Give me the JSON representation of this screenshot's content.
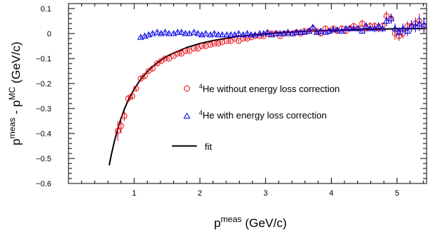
{
  "chart_data": {
    "type": "scatter",
    "xlabel": {
      "base": "p",
      "sup": "meas",
      "rest": " (GeV/c)"
    },
    "ylabel": {
      "base1": "p",
      "sup1": "meas",
      "mid": " - p",
      "sup2": "MC",
      "rest": " (GeV/c)"
    },
    "xlim": [
      0.0,
      5.45
    ],
    "ylim": [
      -0.6,
      0.12
    ],
    "grid": false,
    "legend_position": "center-right",
    "x_ticks": [
      1,
      2,
      3,
      4,
      5
    ],
    "y_ticks": [
      0.1,
      0,
      -0.1,
      -0.2,
      -0.3,
      -0.4,
      -0.5,
      -0.6
    ],
    "x_tick_labels": [
      "1",
      "2",
      "3",
      "4",
      "5"
    ],
    "y_tick_labels": [
      "0.1",
      "0",
      "−0.1",
      "−0.2",
      "−0.3",
      "−0.4",
      "−0.5",
      "−0.6"
    ],
    "series": [
      {
        "name": {
          "sup": "4",
          "text": "He without energy loss correction"
        },
        "marker": "circle",
        "color": "#e8000b",
        "x": [
          0.75,
          0.8,
          0.85,
          0.91,
          0.97,
          1.03,
          1.1,
          1.16,
          1.22,
          1.28,
          1.35,
          1.41,
          1.47,
          1.53,
          1.6,
          1.66,
          1.72,
          1.78,
          1.84,
          1.91,
          1.97,
          2.03,
          2.09,
          2.16,
          2.22,
          2.28,
          2.34,
          2.41,
          2.47,
          2.53,
          2.59,
          2.66,
          2.72,
          2.78,
          2.84,
          2.91,
          2.97,
          3.03,
          3.09,
          3.16,
          3.22,
          3.28,
          3.34,
          3.41,
          3.47,
          3.53,
          3.59,
          3.66,
          3.72,
          3.78,
          3.84,
          3.91,
          3.97,
          4.03,
          4.09,
          4.16,
          4.22,
          4.28,
          4.34,
          4.41,
          4.47,
          4.53,
          4.59,
          4.66,
          4.72,
          4.78,
          4.84,
          4.91,
          4.97,
          5.03,
          5.09,
          5.16,
          5.22,
          5.28,
          5.34,
          5.41
        ],
        "y": [
          -0.39,
          -0.37,
          -0.33,
          -0.26,
          -0.25,
          -0.22,
          -0.18,
          -0.17,
          -0.15,
          -0.14,
          -0.12,
          -0.11,
          -0.1,
          -0.1,
          -0.09,
          -0.08,
          -0.08,
          -0.07,
          -0.07,
          -0.06,
          -0.06,
          -0.05,
          -0.05,
          -0.045,
          -0.04,
          -0.04,
          -0.035,
          -0.03,
          -0.03,
          -0.02,
          -0.03,
          -0.02,
          -0.02,
          -0.015,
          -0.01,
          -0.01,
          -0.01,
          0.0,
          0.0,
          0.0,
          -0.01,
          0.0,
          0.0,
          0.0,
          0.005,
          0.0,
          0.01,
          0.01,
          0.02,
          0.01,
          0.0,
          0.02,
          0.01,
          0.02,
          0.01,
          0.02,
          0.01,
          0.02,
          0.03,
          0.02,
          0.04,
          0.02,
          0.03,
          0.03,
          0.02,
          0.03,
          0.07,
          0.06,
          0.0,
          -0.01,
          0.0,
          0.03,
          0.03,
          0.04,
          0.05,
          0.03
        ],
        "err": [
          0.04,
          0.03,
          0.02,
          0.015,
          0.015,
          0.01,
          0.01,
          0.01,
          0.008,
          0.008,
          0.008,
          0.008,
          0.006,
          0.006,
          0.006,
          0.006,
          0.006,
          0.006,
          0.006,
          0.006,
          0.006,
          0.006,
          0.006,
          0.006,
          0.006,
          0.006,
          0.006,
          0.006,
          0.006,
          0.006,
          0.006,
          0.006,
          0.006,
          0.006,
          0.006,
          0.006,
          0.006,
          0.006,
          0.006,
          0.006,
          0.006,
          0.006,
          0.006,
          0.006,
          0.006,
          0.006,
          0.006,
          0.006,
          0.01,
          0.008,
          0.008,
          0.008,
          0.008,
          0.008,
          0.008,
          0.01,
          0.01,
          0.01,
          0.01,
          0.01,
          0.015,
          0.01,
          0.015,
          0.015,
          0.015,
          0.015,
          0.02,
          0.02,
          0.025,
          0.02,
          0.02,
          0.02,
          0.02,
          0.025,
          0.03,
          0.03
        ]
      },
      {
        "name": {
          "sup": "4",
          "text": "He with energy loss correction"
        },
        "marker": "triangle",
        "color": "#0000e6",
        "x": [
          1.1,
          1.16,
          1.22,
          1.28,
          1.35,
          1.41,
          1.47,
          1.53,
          1.6,
          1.66,
          1.72,
          1.78,
          1.84,
          1.91,
          1.97,
          2.03,
          2.09,
          2.16,
          2.22,
          2.28,
          2.34,
          2.41,
          2.47,
          2.53,
          2.59,
          2.66,
          2.72,
          2.78,
          2.84,
          2.91,
          2.97,
          3.03,
          3.09,
          3.16,
          3.22,
          3.28,
          3.34,
          3.41,
          3.47,
          3.53,
          3.59,
          3.66,
          3.72,
          3.78,
          3.84,
          3.91,
          3.97,
          4.03,
          4.09,
          4.16,
          4.22,
          4.28,
          4.34,
          4.41,
          4.47,
          4.53,
          4.59,
          4.66,
          4.72,
          4.78,
          4.84,
          4.91,
          4.97,
          5.03,
          5.09,
          5.16,
          5.22,
          5.28,
          5.34,
          5.41
        ],
        "y": [
          -0.015,
          -0.01,
          -0.005,
          0.0,
          0.005,
          0.0,
          0.005,
          0.0,
          0.0,
          0.005,
          0.005,
          0.0,
          0.0,
          0.005,
          0.0,
          -0.005,
          0.0,
          -0.005,
          0.0,
          -0.005,
          -0.005,
          -0.005,
          -0.005,
          -0.005,
          0.0,
          -0.005,
          0.0,
          -0.005,
          -0.005,
          0.0,
          0.0,
          0.005,
          -0.005,
          0.0,
          0.0,
          0.0,
          0.005,
          0.0,
          0.005,
          0.005,
          0.005,
          0.01,
          0.025,
          0.005,
          0.01,
          0.005,
          0.01,
          0.015,
          0.015,
          0.01,
          0.02,
          0.02,
          0.02,
          0.02,
          0.01,
          0.03,
          0.02,
          0.02,
          0.03,
          0.02,
          0.05,
          0.06,
          0.02,
          0.005,
          0.02,
          0.01,
          0.03,
          0.03,
          0.04,
          0.035
        ],
        "err": [
          0.006,
          0.006,
          0.006,
          0.006,
          0.006,
          0.006,
          0.006,
          0.006,
          0.006,
          0.006,
          0.006,
          0.006,
          0.006,
          0.006,
          0.006,
          0.006,
          0.006,
          0.006,
          0.006,
          0.006,
          0.006,
          0.006,
          0.006,
          0.006,
          0.006,
          0.006,
          0.006,
          0.006,
          0.006,
          0.006,
          0.006,
          0.006,
          0.006,
          0.006,
          0.006,
          0.006,
          0.006,
          0.006,
          0.006,
          0.006,
          0.006,
          0.008,
          0.01,
          0.008,
          0.008,
          0.008,
          0.008,
          0.008,
          0.008,
          0.01,
          0.01,
          0.01,
          0.01,
          0.01,
          0.01,
          0.015,
          0.01,
          0.015,
          0.015,
          0.015,
          0.02,
          0.02,
          0.02,
          0.02,
          0.02,
          0.02,
          0.025,
          0.025,
          0.03,
          0.03
        ]
      },
      {
        "name": {
          "text": "fit"
        },
        "marker": "line",
        "color": "#000000",
        "x": [
          0.62,
          0.65,
          0.7,
          0.75,
          0.8,
          0.85,
          0.9,
          1.0,
          1.1,
          1.2,
          1.3,
          1.4,
          1.5,
          1.6,
          1.8,
          2.0,
          2.2,
          2.4,
          2.6,
          2.8,
          3.0,
          3.2,
          3.4,
          3.6,
          3.8,
          4.0,
          4.2,
          4.4,
          4.6,
          4.8,
          5.0,
          5.2,
          5.45
        ],
        "y": [
          -0.527,
          -0.487,
          -0.43,
          -0.381,
          -0.339,
          -0.303,
          -0.272,
          -0.222,
          -0.183,
          -0.152,
          -0.128,
          -0.108,
          -0.091,
          -0.078,
          -0.056,
          -0.04,
          -0.028,
          -0.019,
          -0.011,
          -0.006,
          -0.001,
          0.003,
          0.006,
          0.009,
          0.011,
          0.013,
          0.014,
          0.016,
          0.017,
          0.018,
          0.019,
          0.019,
          0.02
        ]
      }
    ]
  }
}
